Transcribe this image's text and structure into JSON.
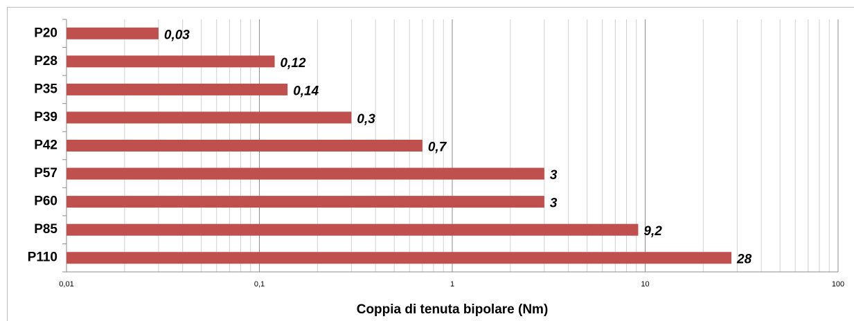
{
  "chart_data": {
    "type": "bar",
    "orientation": "horizontal",
    "x_label": "Coppia di tenuta bipolare (Nm)",
    "categories": [
      "P20",
      "P28",
      "P35",
      "P39",
      "P42",
      "P57",
      "P60",
      "P85",
      "P110"
    ],
    "values": [
      0.03,
      0.12,
      0.14,
      0.3,
      0.7,
      3,
      3,
      9.2,
      28
    ],
    "value_labels": [
      "0,03",
      "0,12",
      "0,14",
      "0,3",
      "0,7",
      "3",
      "3",
      "9,2",
      "28"
    ],
    "color": "#c0504d",
    "xscale": "log",
    "xlim": [
      0.01,
      100
    ],
    "xticks": [
      {
        "value": 0.01,
        "label": "0,01"
      },
      {
        "value": 0.1,
        "label": "0,1"
      },
      1,
      10,
      100
    ],
    "grid": true
  }
}
